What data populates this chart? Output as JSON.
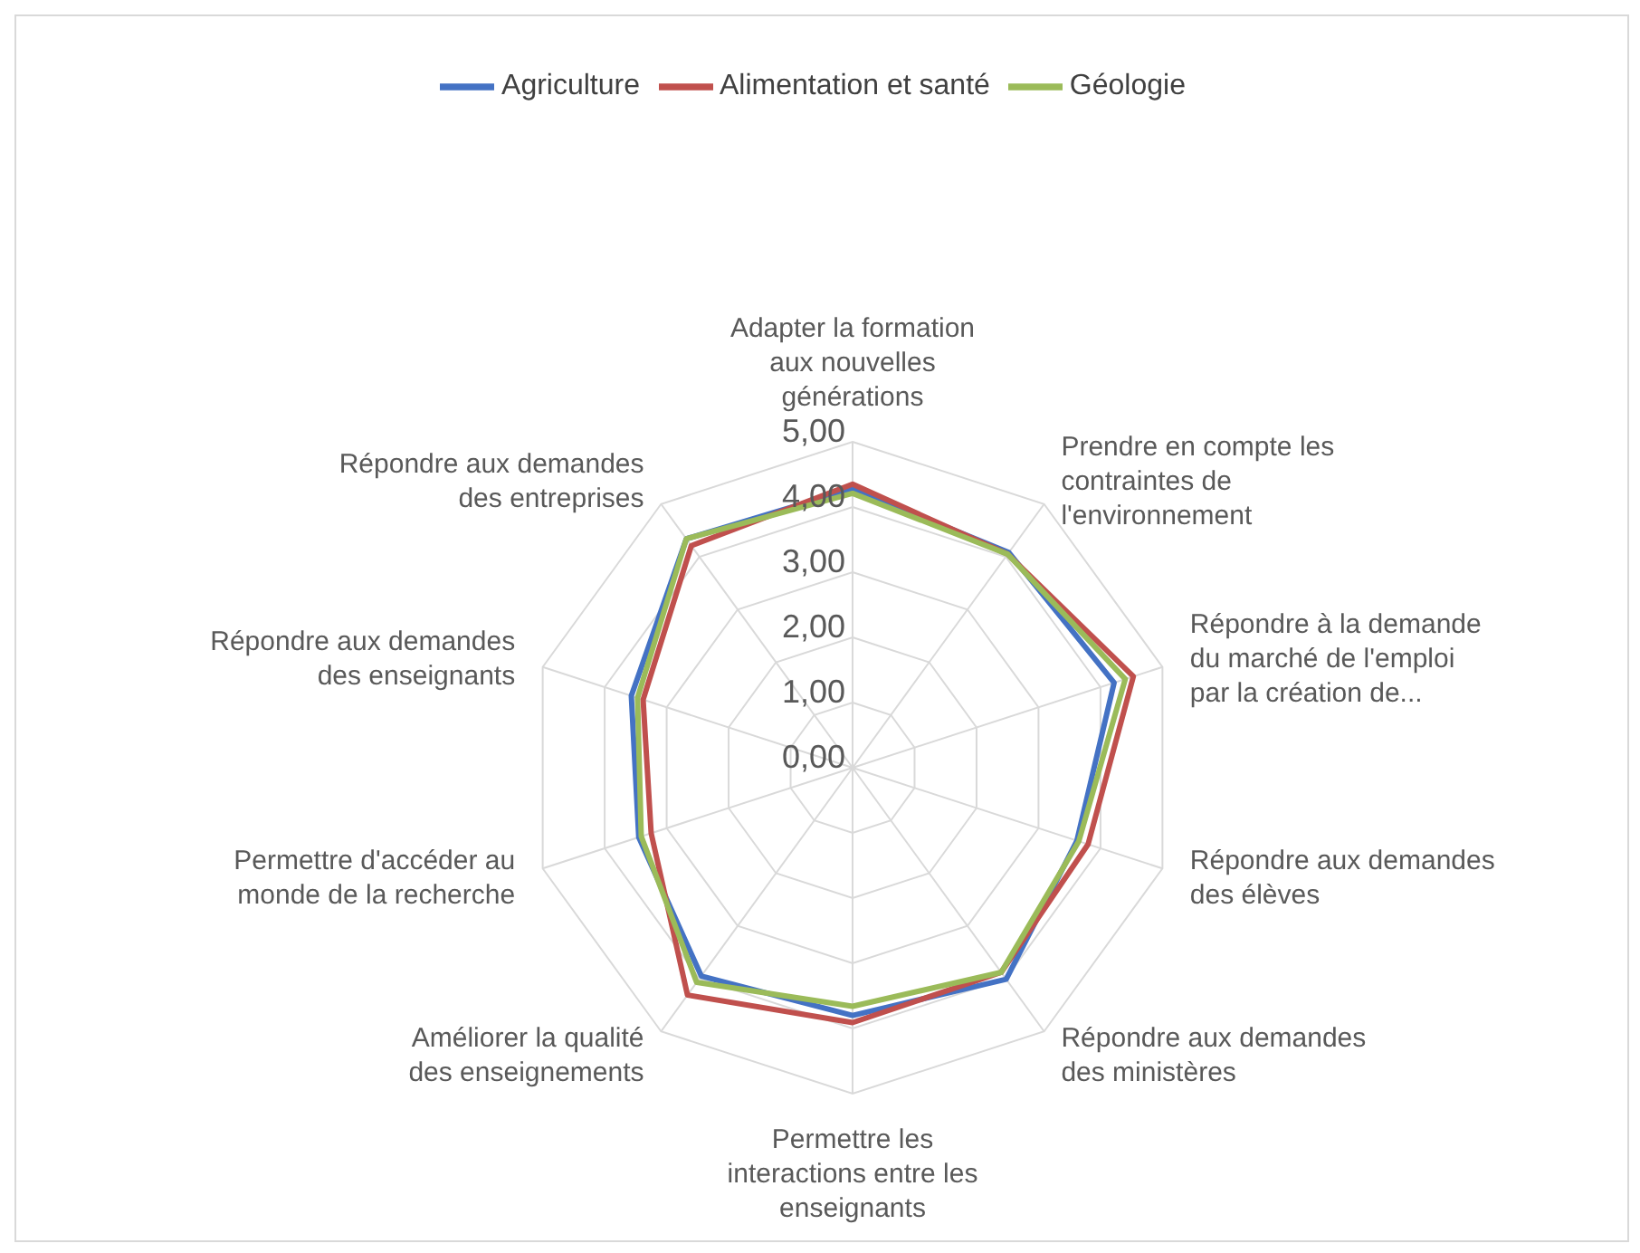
{
  "chart_data": {
    "type": "radar",
    "categories": [
      "Adapter la formation aux nouvelles générations",
      "Prendre en compte les contraintes de l'environnement",
      "Répondre à la demande du marché de l'emploi par la création de...",
      "Répondre aux demandes des élèves",
      "Répondre aux demandes des ministères",
      "Permettre les interactions entre les enseignants",
      "Améliorer la qualité des enseignements",
      "Permettre d'accéder au monde de la recherche",
      "Répondre aux demandes des enseignants",
      "Répondre aux demandes des entreprises"
    ],
    "series": [
      {
        "name": "Agriculture",
        "color": "#4472c4",
        "values": [
          4.28,
          4.08,
          4.22,
          3.62,
          4.01,
          3.8,
          3.95,
          3.45,
          3.57,
          4.34
        ]
      },
      {
        "name": "Alimentation et santé",
        "color": "#c0504d",
        "values": [
          4.35,
          4.05,
          4.53,
          3.8,
          3.88,
          3.91,
          4.31,
          3.25,
          3.38,
          4.21
        ]
      },
      {
        "name": "Géologie",
        "color": "#9bbb59",
        "values": [
          4.21,
          4.05,
          4.4,
          3.65,
          3.88,
          3.66,
          4.07,
          3.41,
          3.47,
          4.34
        ]
      }
    ],
    "ylim": [
      0,
      5
    ],
    "yticks": [
      {
        "value": 0,
        "label": "0,00"
      },
      {
        "value": 1,
        "label": "1,00"
      },
      {
        "value": 2,
        "label": "2,00"
      },
      {
        "value": 3,
        "label": "3,00"
      },
      {
        "value": 4,
        "label": "4,00"
      },
      {
        "value": 5,
        "label": "5,00"
      }
    ],
    "grid": true,
    "legend": "top",
    "marker": "none",
    "line_style": "solid"
  }
}
